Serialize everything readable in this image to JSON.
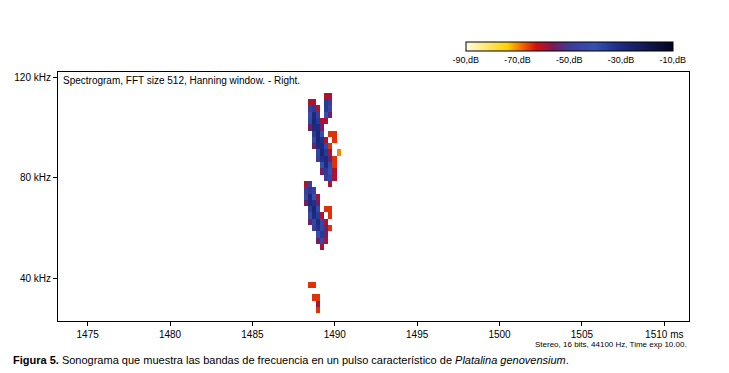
{
  "chart_data": {
    "type": "heatmap",
    "title": "Spectrogram, FFT size 512, Hanning window. - Right.",
    "note": "Stereo, 16 bits, 44100 Hz, Time exp 10.00.",
    "caption": [
      "Figura 5.",
      " Sonograma que muestra las bandas de frecuencia en un pulso característico de ",
      "Platalina genovensium",
      "."
    ],
    "x": [
      1488.0,
      1488.25,
      1488.5,
      1488.75,
      1489.0,
      1489.25,
      1489.5,
      1489.75,
      1490.0,
      1490.25,
      1490.5,
      1490.75
    ],
    "y": [
      25,
      27.5,
      30,
      32.5,
      35,
      37.5,
      40,
      42.5,
      45,
      47.5,
      50,
      52.5,
      55,
      57.5,
      60,
      62.5,
      65,
      67.5,
      70,
      72.5,
      75,
      77.5,
      80,
      82.5,
      85,
      87.5,
      90,
      92.5,
      95,
      97.5,
      100,
      102.5,
      105,
      107.5,
      110,
      112.5,
      115
    ],
    "z": [
      [
        null,
        null,
        null,
        null,
        null,
        null,
        null,
        null,
        null,
        null,
        null,
        null
      ],
      [
        null,
        null,
        null,
        null,
        -65,
        null,
        null,
        null,
        null,
        null,
        null,
        null
      ],
      [
        null,
        null,
        null,
        null,
        -60,
        null,
        null,
        null,
        null,
        null,
        null,
        null
      ],
      [
        null,
        null,
        null,
        -65,
        -65,
        null,
        null,
        null,
        null,
        null,
        null,
        null
      ],
      [
        null,
        null,
        null,
        null,
        null,
        null,
        null,
        null,
        null,
        null,
        null,
        null
      ],
      [
        null,
        null,
        -65,
        -65,
        null,
        null,
        null,
        null,
        null,
        null,
        null,
        null
      ],
      [
        null,
        null,
        null,
        null,
        null,
        null,
        null,
        null,
        null,
        null,
        null,
        null
      ],
      [
        null,
        null,
        null,
        null,
        null,
        null,
        null,
        null,
        null,
        null,
        null,
        null
      ],
      [
        null,
        null,
        null,
        null,
        null,
        null,
        null,
        null,
        null,
        null,
        null,
        null
      ],
      [
        null,
        null,
        null,
        null,
        null,
        null,
        null,
        null,
        null,
        null,
        null,
        null
      ],
      [
        null,
        null,
        null,
        null,
        null,
        null,
        null,
        null,
        null,
        null,
        null,
        null
      ],
      [
        null,
        null,
        null,
        null,
        null,
        -60,
        null,
        null,
        null,
        null,
        null,
        null
      ],
      [
        null,
        null,
        null,
        null,
        -55,
        -45,
        -60,
        null,
        null,
        null,
        null,
        null
      ],
      [
        null,
        null,
        null,
        null,
        -42,
        -35,
        -55,
        null,
        null,
        null,
        null,
        null
      ],
      [
        null,
        null,
        null,
        -50,
        -32,
        -38,
        -55,
        -65,
        null,
        null,
        null,
        null
      ],
      [
        null,
        null,
        -55,
        -38,
        -30,
        -45,
        -60,
        null,
        null,
        null,
        null,
        null
      ],
      [
        null,
        null,
        -45,
        -30,
        -35,
        -60,
        null,
        -65,
        null,
        null,
        null,
        null
      ],
      [
        null,
        null,
        -35,
        -28,
        -45,
        null,
        -65,
        -65,
        null,
        null,
        null,
        null
      ],
      [
        null,
        -55,
        -30,
        -32,
        -55,
        null,
        null,
        null,
        null,
        null,
        null,
        null
      ],
      [
        null,
        -45,
        -30,
        -40,
        -60,
        null,
        null,
        null,
        null,
        null,
        null,
        null
      ],
      [
        null,
        -50,
        -35,
        -50,
        null,
        null,
        null,
        null,
        null,
        null,
        null,
        null
      ],
      [
        null,
        -60,
        -50,
        null,
        null,
        null,
        null,
        -60,
        null,
        null,
        null,
        null
      ],
      [
        null,
        null,
        null,
        null,
        null,
        null,
        -50,
        -45,
        -60,
        null,
        null,
        null
      ],
      [
        null,
        null,
        null,
        null,
        null,
        -55,
        -35,
        -40,
        -60,
        null,
        null,
        null
      ],
      [
        null,
        null,
        null,
        null,
        null,
        -40,
        -30,
        -45,
        -65,
        null,
        null,
        null
      ],
      [
        null,
        null,
        null,
        null,
        -50,
        -32,
        -30,
        -55,
        -65,
        null,
        null,
        null
      ],
      [
        null,
        null,
        null,
        null,
        -38,
        -28,
        -35,
        -60,
        null,
        -70,
        null,
        null
      ],
      [
        null,
        null,
        null,
        -55,
        -30,
        -30,
        -45,
        -65,
        null,
        null,
        null,
        null
      ],
      [
        null,
        null,
        null,
        -45,
        -28,
        -32,
        -60,
        null,
        -65,
        null,
        null,
        null
      ],
      [
        null,
        null,
        null,
        -35,
        -28,
        -40,
        null,
        -65,
        -65,
        null,
        null,
        null
      ],
      [
        null,
        null,
        -55,
        -30,
        -30,
        -55,
        null,
        null,
        null,
        null,
        null,
        null
      ],
      [
        null,
        null,
        -45,
        -28,
        -35,
        -60,
        -60,
        null,
        null,
        null,
        null,
        null
      ],
      [
        null,
        null,
        -40,
        -30,
        -50,
        null,
        -40,
        -55,
        null,
        null,
        null,
        null
      ],
      [
        null,
        null,
        -50,
        -35,
        -60,
        null,
        -35,
        -45,
        null,
        null,
        null,
        null
      ],
      [
        null,
        null,
        -60,
        -60,
        null,
        null,
        -35,
        -50,
        null,
        null,
        null,
        null
      ],
      [
        null,
        null,
        null,
        null,
        null,
        null,
        -60,
        -60,
        null,
        null,
        null,
        null
      ],
      [
        null,
        null,
        null,
        null,
        null,
        null,
        null,
        null,
        null,
        null,
        null,
        null
      ]
    ],
    "zlim": [
      -90,
      -10
    ],
    "zticks": [
      {
        "value": -90,
        "label": "-90,dB"
      },
      {
        "value": -70,
        "label": "-70,dB"
      },
      {
        "value": -50,
        "label": "-50,dB"
      },
      {
        "value": -30,
        "label": "-30,dB"
      },
      {
        "value": -10,
        "label": "-10,dB"
      }
    ],
    "xlim": [
      1473.2,
      1511.5
    ],
    "xticks": [
      1475,
      1480,
      1485,
      1490,
      1495,
      1500,
      1505,
      {
        "value": 1510,
        "label": "1510 ms"
      }
    ],
    "ylim": [
      23,
      122
    ],
    "yticks": [
      {
        "value": 40,
        "label": "40 kHz"
      },
      {
        "value": 80,
        "label": "80 kHz"
      },
      {
        "value": 120,
        "label": "120 kHz"
      }
    ],
    "grid": false
  }
}
